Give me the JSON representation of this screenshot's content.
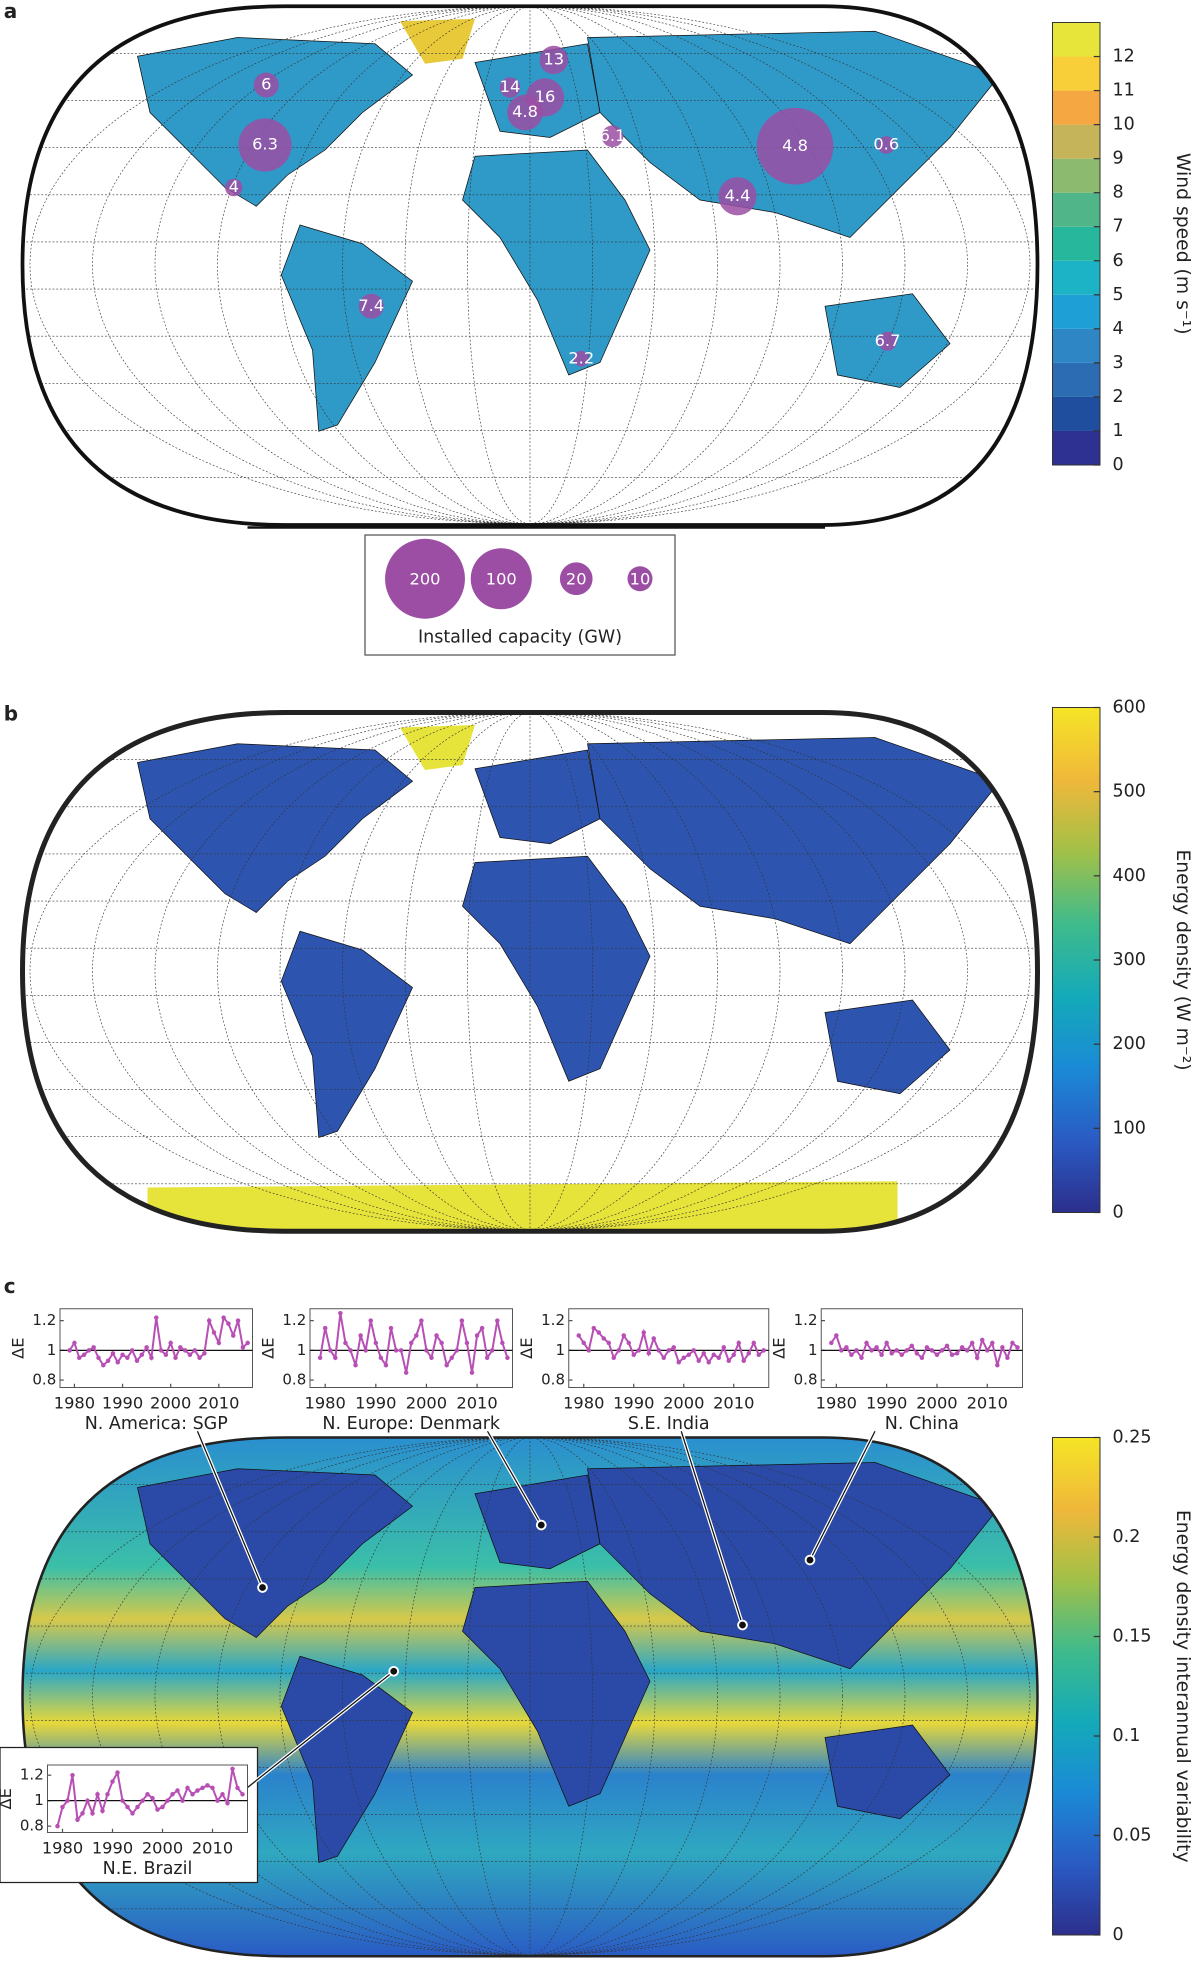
{
  "panels": [
    {
      "label": "a",
      "colorbar": {
        "title": "Wind speed (m s⁻¹)",
        "lim": [
          0,
          13
        ],
        "ticks": [
          0,
          1,
          2,
          3,
          4,
          5,
          6,
          7,
          8,
          9,
          10,
          11,
          12
        ],
        "discrete": true,
        "colors": [
          "#2e3192",
          "#1f4e9e",
          "#2b6cb2",
          "#2f86c5",
          "#1ea0d6",
          "#1db3c6",
          "#27b79c",
          "#50b68a",
          "#8cba6e",
          "#c6b45a",
          "#f5a742",
          "#f8cf38",
          "#e8e53a"
        ]
      },
      "bubbles": [
        {
          "wind_speed": 6,
          "capacity": 10
        },
        {
          "wind_speed": 6.3,
          "capacity": 70
        },
        {
          "wind_speed": 4,
          "capacity": 4
        },
        {
          "wind_speed": 7.4,
          "capacity": 10
        },
        {
          "wind_speed": 13,
          "capacity": 14
        },
        {
          "wind_speed": 14,
          "capacity": 6
        },
        {
          "wind_speed": 16,
          "capacity": 30
        },
        {
          "wind_speed": 4.8,
          "capacity": 25
        },
        {
          "wind_speed": 6.1,
          "capacity": 7
        },
        {
          "wind_speed": 4.4,
          "capacity": 30
        },
        {
          "wind_speed": 4.8,
          "capacity": 180
        },
        {
          "wind_speed": 0.6,
          "capacity": 4
        },
        {
          "wind_speed": 2.2,
          "capacity": 3
        },
        {
          "wind_speed": 6.7,
          "capacity": 5
        }
      ],
      "bubble_color": "#9b4ea3",
      "capacity_legend": {
        "title": "Installed capacity (GW)",
        "sizes": [
          200,
          100,
          20,
          10
        ]
      }
    },
    {
      "label": "b",
      "colorbar": {
        "title": "Energy density  (W m⁻²)",
        "lim": [
          0,
          600
        ],
        "ticks": [
          0,
          100,
          200,
          300,
          400,
          500,
          600
        ],
        "discrete": false,
        "colors": [
          "#2c2f8c",
          "#2a5bc4",
          "#1b8ad6",
          "#14aab9",
          "#3fbb8c",
          "#a2c048",
          "#f0b83a",
          "#f5e526"
        ]
      }
    },
    {
      "label": "c",
      "colorbar": {
        "title": "Energy density interannual variability",
        "lim": [
          0,
          0.25
        ],
        "ticks": [
          0,
          0.05,
          0.1,
          0.15,
          0.2,
          0.25
        ],
        "discrete": false,
        "colors": [
          "#2c2f8c",
          "#2a5bc4",
          "#1b8ad6",
          "#14aab9",
          "#3fbb8c",
          "#a2c048",
          "#f0b83a",
          "#f5e526"
        ]
      },
      "inset_axes": {
        "ylabel": "ΔE",
        "xlim": [
          1977,
          2017
        ],
        "xticks": [
          1980,
          1990,
          2000,
          2010
        ],
        "ylim": [
          0.75,
          1.28
        ],
        "yticks": [
          0.8,
          1,
          1.2
        ],
        "x": [
          1979,
          1980,
          1981,
          1982,
          1983,
          1984,
          1985,
          1986,
          1987,
          1988,
          1989,
          1990,
          1991,
          1992,
          1993,
          1994,
          1995,
          1996,
          1997,
          1998,
          1999,
          2000,
          2001,
          2002,
          2003,
          2004,
          2005,
          2006,
          2007,
          2008,
          2009,
          2010,
          2011,
          2012,
          2013,
          2014,
          2015,
          2016
        ]
      },
      "insets": [
        {
          "name": "N. America: SGP",
          "color": "#b84fb5",
          "values": [
            1.0,
            1.05,
            0.95,
            0.97,
            1.0,
            1.02,
            0.95,
            0.9,
            0.93,
            0.98,
            0.92,
            0.97,
            0.95,
            1.0,
            0.93,
            0.97,
            1.02,
            0.95,
            1.22,
            1.0,
            0.97,
            1.05,
            0.95,
            1.02,
            1.0,
            0.97,
            1.0,
            0.95,
            0.98,
            1.2,
            1.12,
            1.05,
            1.22,
            1.18,
            1.1,
            1.2,
            1.02,
            1.05
          ]
        },
        {
          "name": "N. Europe: Denmark",
          "color": "#b84fb5",
          "values": [
            0.95,
            1.15,
            1.0,
            0.95,
            1.25,
            1.05,
            1.0,
            0.9,
            1.1,
            1.0,
            1.2,
            1.05,
            0.95,
            0.9,
            1.15,
            1.0,
            1.0,
            0.85,
            1.05,
            1.1,
            1.2,
            1.0,
            0.95,
            1.1,
            1.05,
            0.9,
            0.95,
            1.0,
            1.2,
            1.05,
            0.85,
            1.1,
            1.15,
            0.95,
            1.0,
            1.2,
            1.05,
            0.95
          ]
        },
        {
          "name": "S.E. India",
          "color": "#b84fb5",
          "values": [
            1.1,
            1.05,
            1.0,
            1.15,
            1.12,
            1.08,
            1.05,
            0.95,
            1.0,
            1.1,
            1.05,
            0.97,
            1.0,
            1.12,
            0.98,
            1.08,
            1.0,
            0.95,
            1.0,
            1.02,
            0.92,
            0.95,
            0.97,
            1.0,
            0.93,
            0.98,
            0.92,
            0.97,
            0.95,
            1.02,
            0.93,
            0.97,
            1.05,
            0.93,
            0.98,
            1.05,
            0.97,
            1.0
          ]
        },
        {
          "name": "N. China",
          "color": "#b84fb5",
          "values": [
            1.05,
            1.1,
            1.0,
            1.02,
            0.97,
            1.0,
            0.95,
            1.05,
            1.0,
            1.02,
            0.97,
            1.05,
            0.98,
            1.0,
            0.97,
            1.0,
            1.03,
            0.98,
            0.95,
            1.02,
            1.0,
            0.97,
            1.0,
            1.03,
            0.97,
            0.98,
            1.02,
            1.0,
            1.05,
            0.95,
            1.07,
            1.0,
            1.05,
            0.9,
            1.02,
            0.95,
            1.05,
            1.02
          ]
        },
        {
          "name": "N.E. Brazil",
          "color": "#b84fb5",
          "values": [
            0.8,
            0.95,
            1.0,
            1.2,
            0.85,
            0.9,
            1.0,
            0.9,
            1.05,
            0.92,
            1.05,
            1.15,
            1.22,
            1.0,
            0.95,
            0.9,
            0.95,
            1.0,
            1.05,
            1.02,
            0.93,
            0.95,
            1.0,
            1.05,
            1.08,
            1.0,
            1.1,
            1.05,
            1.08,
            1.1,
            1.12,
            1.1,
            1.0,
            1.05,
            0.98,
            1.25,
            1.1,
            1.05
          ]
        }
      ]
    }
  ]
}
